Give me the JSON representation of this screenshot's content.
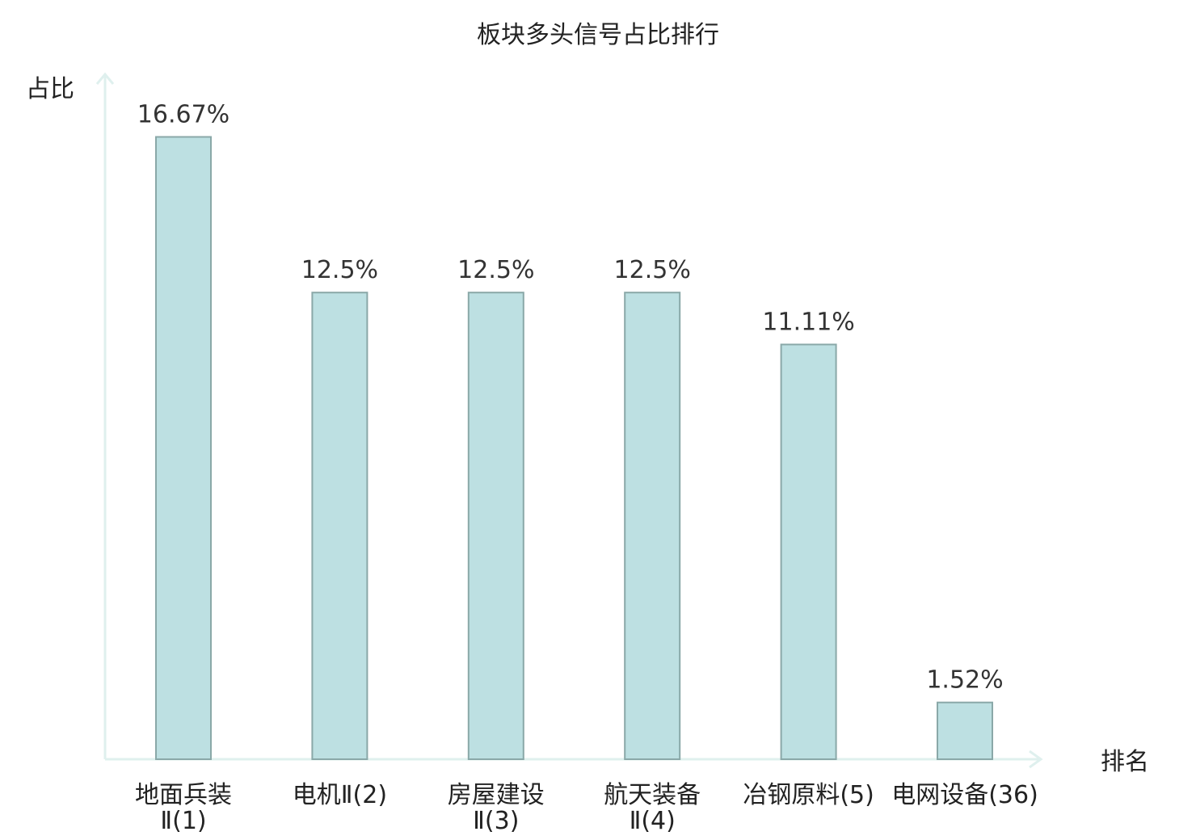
{
  "chart_data": {
    "type": "bar",
    "title": "板块多头信号占比排行",
    "ylabel": "占比",
    "xlabel": "排名",
    "ylim": [
      0,
      18
    ],
    "grid": false,
    "categories": [
      [
        "地面兵装",
        "Ⅱ(1)"
      ],
      [
        "电机Ⅱ(2)"
      ],
      [
        "房屋建设",
        "Ⅱ(3)"
      ],
      [
        "航天装备",
        "Ⅱ(4)"
      ],
      [
        "冶钢原料(5)"
      ],
      [
        "电网设备(36)"
      ]
    ],
    "values": [
      16.67,
      12.5,
      12.5,
      12.5,
      11.11,
      1.52
    ],
    "value_labels": [
      "16.67%",
      "12.5%",
      "12.5%",
      "12.5%",
      "11.11%",
      "1.52%"
    ],
    "highlight_index": 5
  },
  "colors": {
    "bar_fill": "#bde0e2",
    "bar_stroke": "#8aa8a8",
    "axis": "#dff0ee",
    "highlight_text": "#e8141b",
    "text": "#222222",
    "value_text": "#333333"
  }
}
